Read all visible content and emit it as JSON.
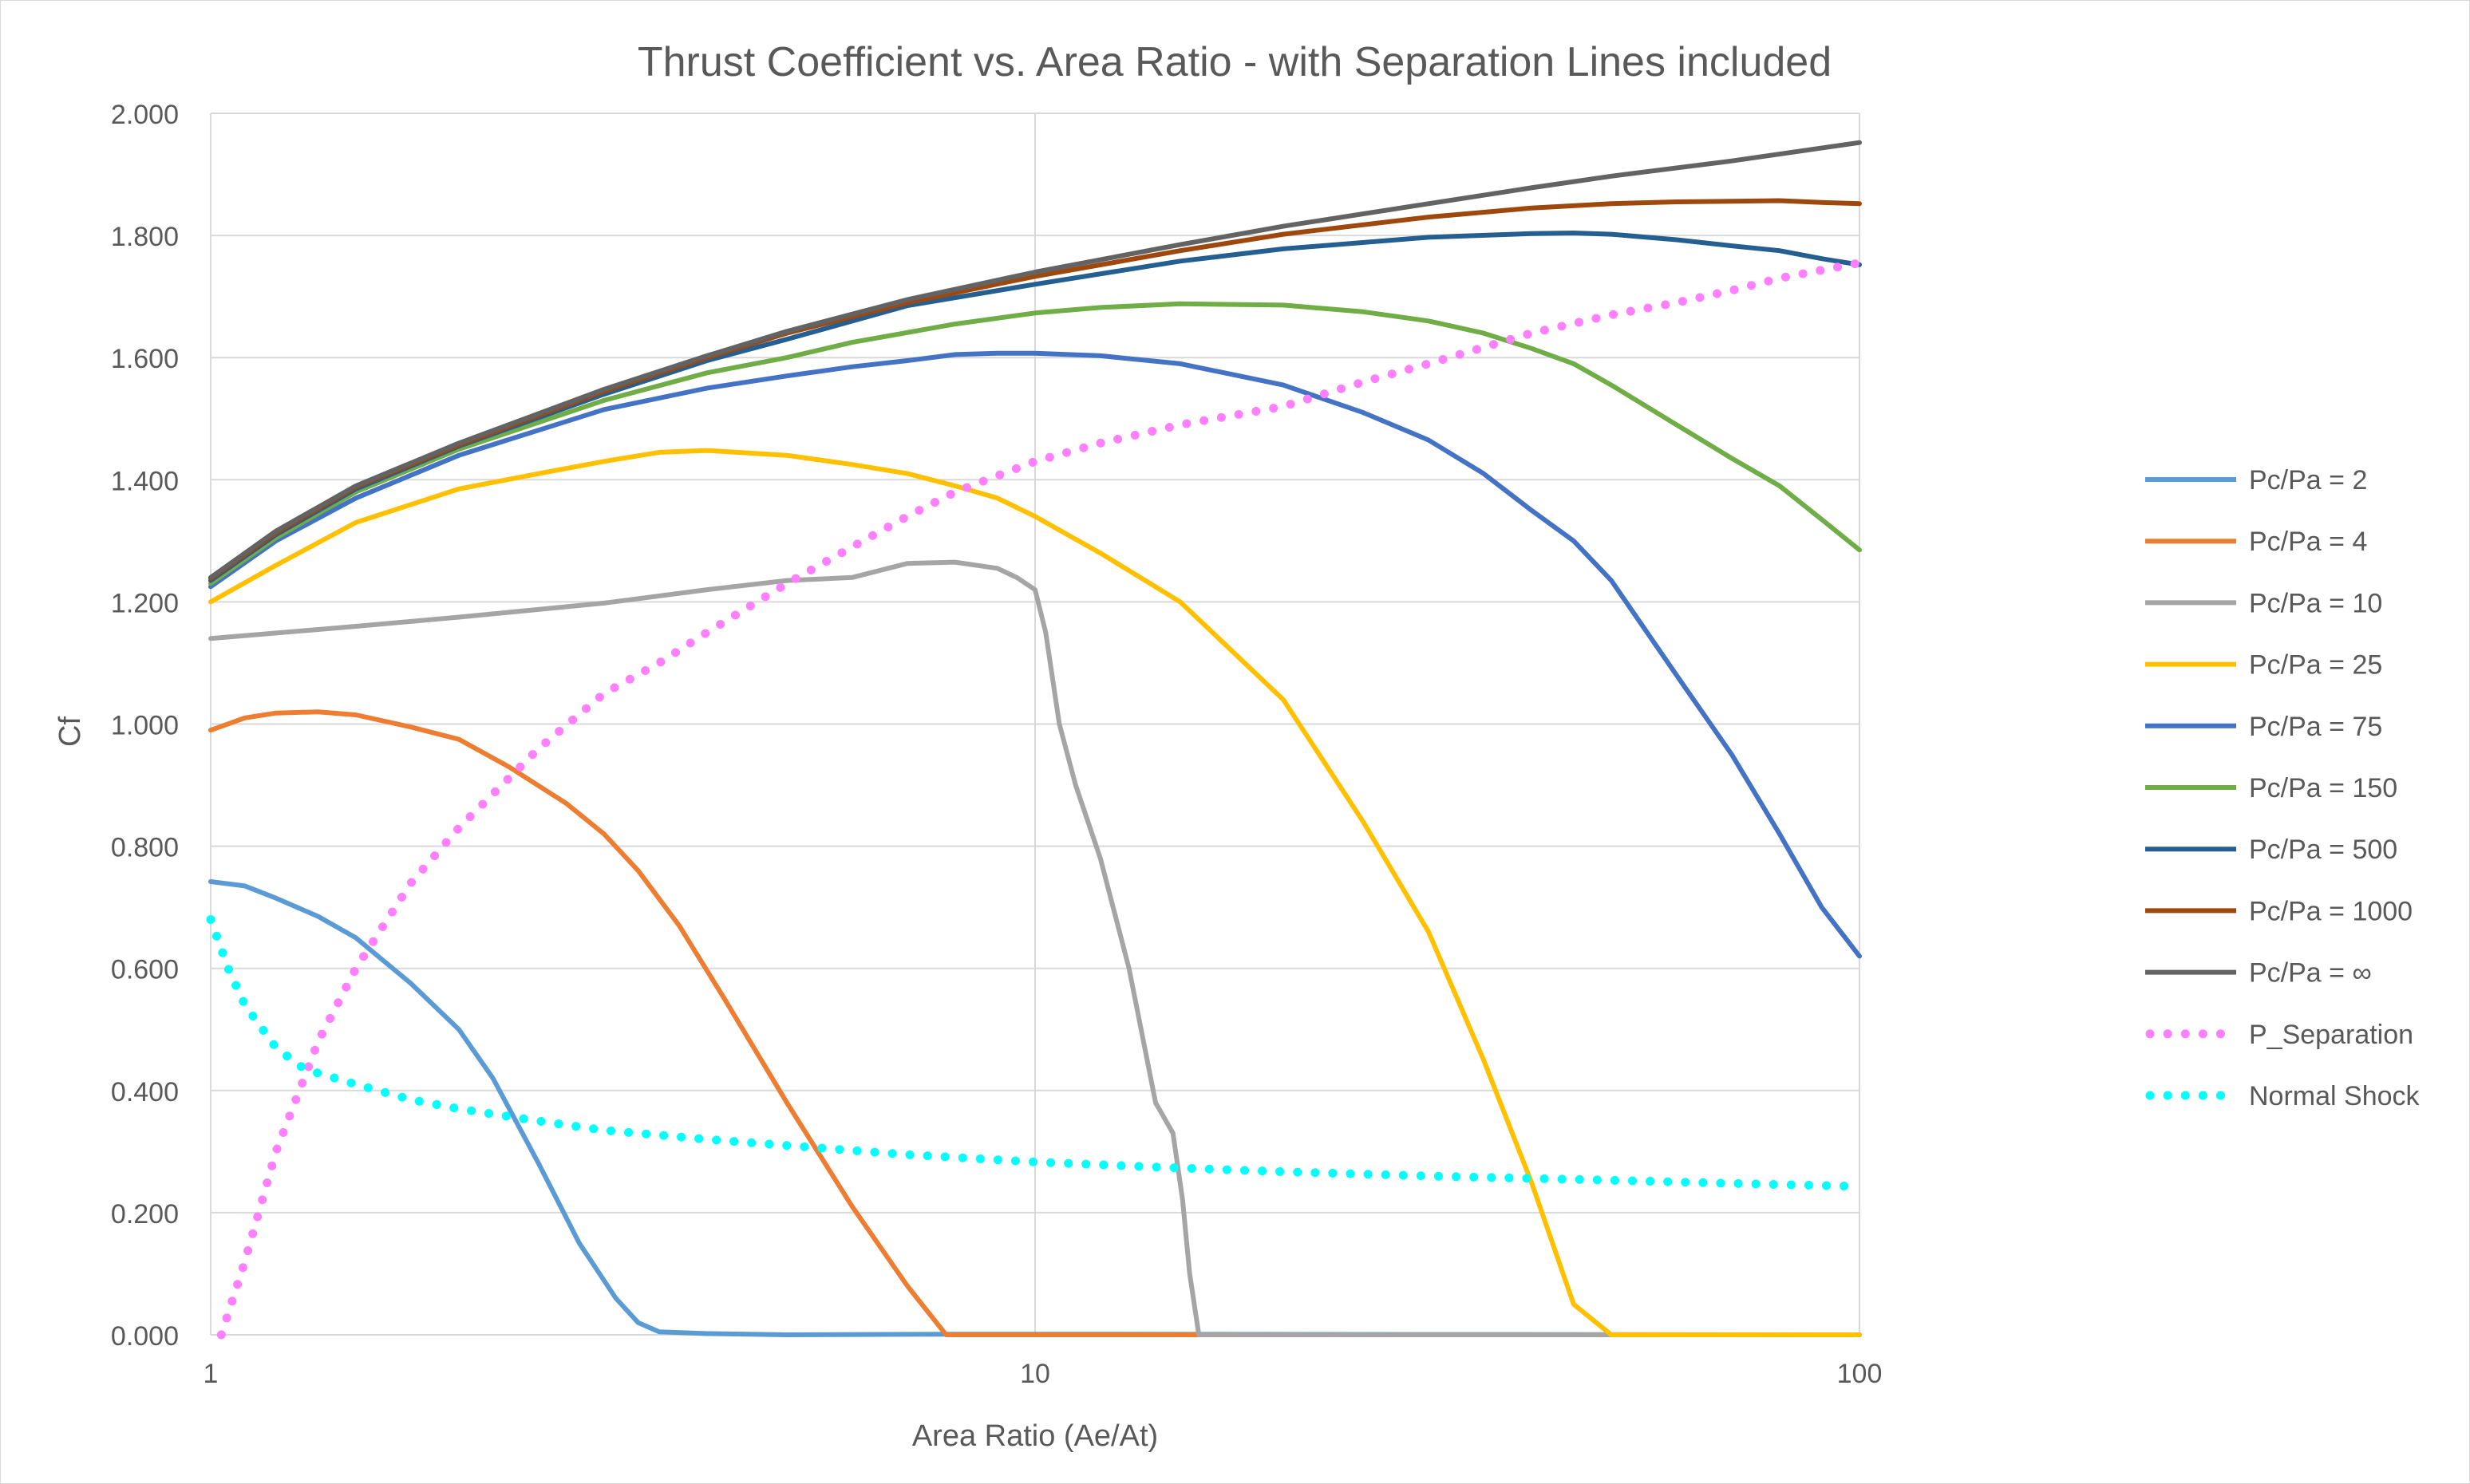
{
  "chart_data": {
    "type": "line",
    "title": "Thrust Coefficient vs. Area Ratio - with Separation Lines included",
    "xlabel": "Area Ratio (Ae/At)",
    "ylabel": "Cf",
    "x_scale": "log",
    "xlim": [
      1,
      100
    ],
    "ylim": [
      0,
      2
    ],
    "x_ticks": [
      "1",
      "10",
      "100"
    ],
    "y_ticks": [
      "0.000",
      "0.200",
      "0.400",
      "0.600",
      "0.800",
      "1.000",
      "1.200",
      "1.400",
      "1.600",
      "1.800",
      "2.000"
    ],
    "grid": true,
    "legend_position": "right",
    "series": [
      {
        "name": "Pc/Pa = 2",
        "color": "#5b9bd5",
        "style": "solid",
        "points": [
          [
            1,
            0.742
          ],
          [
            1.1,
            0.735
          ],
          [
            1.2,
            0.715
          ],
          [
            1.35,
            0.685
          ],
          [
            1.5,
            0.65
          ],
          [
            1.75,
            0.575
          ],
          [
            2.0,
            0.5
          ],
          [
            2.2,
            0.42
          ],
          [
            2.5,
            0.28
          ],
          [
            2.8,
            0.15
          ],
          [
            3.1,
            0.06
          ],
          [
            3.3,
            0.02
          ],
          [
            3.5,
            0.005
          ],
          [
            4,
            0.002
          ],
          [
            5,
            0.0
          ],
          [
            8,
            0.001
          ],
          [
            10,
            0.001
          ],
          [
            100,
            0.0
          ]
        ]
      },
      {
        "name": "Pc/Pa = 4",
        "color": "#ed7d31",
        "style": "solid",
        "points": [
          [
            1,
            0.99
          ],
          [
            1.1,
            1.01
          ],
          [
            1.2,
            1.018
          ],
          [
            1.35,
            1.02
          ],
          [
            1.5,
            1.015
          ],
          [
            1.75,
            0.995
          ],
          [
            2.0,
            0.975
          ],
          [
            2.3,
            0.93
          ],
          [
            2.7,
            0.87
          ],
          [
            3.0,
            0.82
          ],
          [
            3.3,
            0.76
          ],
          [
            3.7,
            0.67
          ],
          [
            4.2,
            0.55
          ],
          [
            5,
            0.38
          ],
          [
            6,
            0.21
          ],
          [
            7,
            0.08
          ],
          [
            7.8,
            0.0
          ],
          [
            100,
            0.0
          ]
        ]
      },
      {
        "name": "Pc/Pa = 10",
        "color": "#a5a5a5",
        "style": "solid",
        "points": [
          [
            1,
            1.14
          ],
          [
            1.5,
            1.16
          ],
          [
            2,
            1.175
          ],
          [
            3,
            1.198
          ],
          [
            4,
            1.22
          ],
          [
            5,
            1.235
          ],
          [
            6,
            1.24
          ],
          [
            7,
            1.263
          ],
          [
            8,
            1.265
          ],
          [
            9,
            1.255
          ],
          [
            9.5,
            1.24
          ],
          [
            10,
            1.22
          ],
          [
            10.3,
            1.15
          ],
          [
            10.7,
            1.0
          ],
          [
            11.2,
            0.9
          ],
          [
            12,
            0.78
          ],
          [
            13,
            0.6
          ],
          [
            14,
            0.38
          ],
          [
            14.7,
            0.33
          ],
          [
            15.1,
            0.22
          ],
          [
            15.4,
            0.1
          ],
          [
            15.8,
            0.0
          ],
          [
            100,
            0.0
          ]
        ]
      },
      {
        "name": "Pc/Pa = 25",
        "color": "#ffc000",
        "style": "solid",
        "points": [
          [
            1,
            1.2
          ],
          [
            1.2,
            1.26
          ],
          [
            1.5,
            1.33
          ],
          [
            2,
            1.385
          ],
          [
            2.5,
            1.41
          ],
          [
            3,
            1.43
          ],
          [
            3.5,
            1.445
          ],
          [
            4,
            1.448
          ],
          [
            5,
            1.44
          ],
          [
            6,
            1.425
          ],
          [
            7,
            1.41
          ],
          [
            8,
            1.39
          ],
          [
            9,
            1.37
          ],
          [
            10,
            1.34
          ],
          [
            12,
            1.28
          ],
          [
            15,
            1.2
          ],
          [
            20,
            1.04
          ],
          [
            25,
            0.84
          ],
          [
            30,
            0.66
          ],
          [
            35,
            0.45
          ],
          [
            40,
            0.25
          ],
          [
            45,
            0.05
          ],
          [
            50,
            0.0
          ],
          [
            100,
            0.0
          ]
        ]
      },
      {
        "name": "Pc/Pa = 75",
        "color": "#4472c4",
        "style": "solid",
        "points": [
          [
            1,
            1.225
          ],
          [
            1.2,
            1.3
          ],
          [
            1.5,
            1.37
          ],
          [
            2,
            1.44
          ],
          [
            3,
            1.515
          ],
          [
            4,
            1.55
          ],
          [
            5,
            1.57
          ],
          [
            6,
            1.585
          ],
          [
            7,
            1.595
          ],
          [
            8,
            1.605
          ],
          [
            9,
            1.607
          ],
          [
            10,
            1.607
          ],
          [
            12,
            1.603
          ],
          [
            15,
            1.59
          ],
          [
            20,
            1.555
          ],
          [
            25,
            1.51
          ],
          [
            30,
            1.465
          ],
          [
            35,
            1.41
          ],
          [
            40,
            1.35
          ],
          [
            45,
            1.3
          ],
          [
            50,
            1.235
          ],
          [
            60,
            1.08
          ],
          [
            70,
            0.95
          ],
          [
            80,
            0.82
          ],
          [
            90,
            0.7
          ],
          [
            100,
            0.62
          ]
        ]
      },
      {
        "name": "Pc/Pa = 150",
        "color": "#70ad47",
        "style": "solid",
        "points": [
          [
            1,
            1.23
          ],
          [
            1.2,
            1.305
          ],
          [
            1.5,
            1.38
          ],
          [
            2,
            1.45
          ],
          [
            3,
            1.53
          ],
          [
            4,
            1.575
          ],
          [
            5,
            1.6
          ],
          [
            6,
            1.625
          ],
          [
            8,
            1.655
          ],
          [
            10,
            1.673
          ],
          [
            12,
            1.682
          ],
          [
            15,
            1.688
          ],
          [
            20,
            1.686
          ],
          [
            25,
            1.675
          ],
          [
            30,
            1.66
          ],
          [
            35,
            1.64
          ],
          [
            40,
            1.615
          ],
          [
            45,
            1.59
          ],
          [
            50,
            1.555
          ],
          [
            60,
            1.49
          ],
          [
            70,
            1.435
          ],
          [
            80,
            1.39
          ],
          [
            90,
            1.335
          ],
          [
            100,
            1.285
          ]
        ]
      },
      {
        "name": "Pc/Pa = 500",
        "color": "#255e91",
        "style": "solid",
        "points": [
          [
            1,
            1.235
          ],
          [
            1.2,
            1.31
          ],
          [
            1.5,
            1.385
          ],
          [
            2,
            1.455
          ],
          [
            3,
            1.54
          ],
          [
            4,
            1.595
          ],
          [
            5,
            1.63
          ],
          [
            7,
            1.685
          ],
          [
            10,
            1.72
          ],
          [
            15,
            1.758
          ],
          [
            20,
            1.778
          ],
          [
            30,
            1.797
          ],
          [
            40,
            1.803
          ],
          [
            45,
            1.804
          ],
          [
            50,
            1.802
          ],
          [
            60,
            1.793
          ],
          [
            70,
            1.783
          ],
          [
            80,
            1.775
          ],
          [
            90,
            1.762
          ],
          [
            100,
            1.752
          ]
        ]
      },
      {
        "name": "Pc/Pa = 1000",
        "color": "#9e480e",
        "style": "solid",
        "points": [
          [
            1,
            1.238
          ],
          [
            1.2,
            1.313
          ],
          [
            1.5,
            1.388
          ],
          [
            2,
            1.457
          ],
          [
            3,
            1.545
          ],
          [
            4,
            1.6
          ],
          [
            5,
            1.64
          ],
          [
            7,
            1.69
          ],
          [
            10,
            1.733
          ],
          [
            15,
            1.775
          ],
          [
            20,
            1.802
          ],
          [
            30,
            1.83
          ],
          [
            40,
            1.845
          ],
          [
            50,
            1.852
          ],
          [
            60,
            1.855
          ],
          [
            70,
            1.856
          ],
          [
            80,
            1.857
          ],
          [
            90,
            1.854
          ],
          [
            100,
            1.852
          ]
        ]
      },
      {
        "name": "Pc/Pa = ∞",
        "color": "#636363",
        "style": "solid",
        "points": [
          [
            1,
            1.24
          ],
          [
            1.2,
            1.316
          ],
          [
            1.5,
            1.39
          ],
          [
            2,
            1.46
          ],
          [
            3,
            1.548
          ],
          [
            4,
            1.603
          ],
          [
            5,
            1.643
          ],
          [
            7,
            1.695
          ],
          [
            10,
            1.74
          ],
          [
            15,
            1.785
          ],
          [
            20,
            1.815
          ],
          [
            30,
            1.852
          ],
          [
            40,
            1.878
          ],
          [
            50,
            1.897
          ],
          [
            70,
            1.922
          ],
          [
            100,
            1.952
          ]
        ]
      },
      {
        "name": "P_Separation",
        "color": "#ff80ff",
        "style": "dotted",
        "points": [
          [
            1.03,
            0.0
          ],
          [
            1.1,
            0.12
          ],
          [
            1.2,
            0.3
          ],
          [
            1.35,
            0.48
          ],
          [
            1.5,
            0.6
          ],
          [
            1.75,
            0.74
          ],
          [
            2.0,
            0.83
          ],
          [
            2.5,
            0.96
          ],
          [
            3.0,
            1.05
          ],
          [
            3.5,
            1.1
          ],
          [
            4,
            1.15
          ],
          [
            5,
            1.23
          ],
          [
            6,
            1.29
          ],
          [
            7,
            1.34
          ],
          [
            8,
            1.38
          ],
          [
            10,
            1.43
          ],
          [
            12,
            1.46
          ],
          [
            15,
            1.49
          ],
          [
            20,
            1.52
          ],
          [
            25,
            1.56
          ],
          [
            30,
            1.59
          ],
          [
            40,
            1.64
          ],
          [
            50,
            1.67
          ],
          [
            60,
            1.69
          ],
          [
            70,
            1.71
          ],
          [
            80,
            1.73
          ],
          [
            100,
            1.755
          ]
        ]
      },
      {
        "name": "Normal Shock",
        "color": "#00ffff",
        "style": "dotted",
        "points": [
          [
            1.0,
            0.68
          ],
          [
            1.05,
            0.6
          ],
          [
            1.1,
            0.54
          ],
          [
            1.2,
            0.47
          ],
          [
            1.3,
            0.435
          ],
          [
            1.5,
            0.41
          ],
          [
            1.75,
            0.385
          ],
          [
            2.0,
            0.37
          ],
          [
            2.5,
            0.35
          ],
          [
            3.0,
            0.335
          ],
          [
            4,
            0.32
          ],
          [
            5,
            0.31
          ],
          [
            7,
            0.295
          ],
          [
            10,
            0.283
          ],
          [
            15,
            0.273
          ],
          [
            20,
            0.267
          ],
          [
            30,
            0.26
          ],
          [
            50,
            0.253
          ],
          [
            70,
            0.248
          ],
          [
            100,
            0.243
          ]
        ]
      }
    ]
  }
}
